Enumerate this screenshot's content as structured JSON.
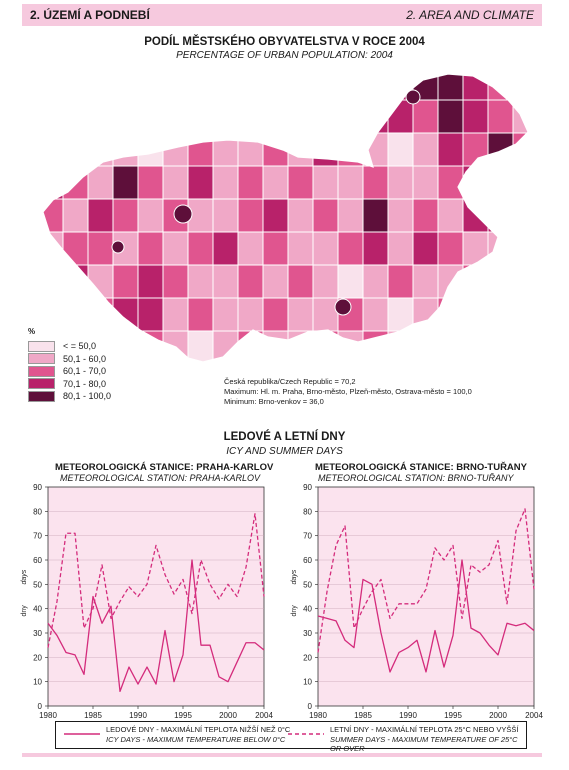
{
  "header": {
    "left": "2. ÚZEMÍ A PODNEBÍ",
    "right": "2. AREA AND CLIMATE"
  },
  "map": {
    "title": "PODÍL MĚSTSKÉHO OBYVATELSTVA V ROCE 2004",
    "subtitle": "PERCENTAGE OF URBAN POPULATION: 2004",
    "legend_unit": "%",
    "legend": [
      {
        "label": "< = 50,0",
        "color": "#f9e2ec"
      },
      {
        "label": "50,1 - 60,0",
        "color": "#f0a8c7"
      },
      {
        "label": "60,1 - 70,0",
        "color": "#e0558f"
      },
      {
        "label": "70,1 - 80,0",
        "color": "#b8226a"
      },
      {
        "label": "80,1 - 100,0",
        "color": "#5e0f3a"
      }
    ],
    "notes": [
      "Česká republika/Czech Republic = 70,2",
      "Maximum: Hl. m. Praha, Brno-město, Plzeň-město, Ostrava-město = 100,0",
      "Minimum: Brno-venkov = 36,0"
    ]
  },
  "charts_title": "LEDOVÉ A LETNÍ DNY",
  "charts_subtitle": "ICY AND SUMMER DAYS",
  "chart_data": [
    {
      "type": "line",
      "title": "METEOROLOGICKÁ STANICE: PRAHA-KARLOV",
      "subtitle": "METEOROLOGICAL STATION: PRAHA-KARLOV",
      "ylabel": "dny",
      "ylabel2": "days",
      "ylim": [
        0,
        90
      ],
      "yticks": [
        0,
        10,
        20,
        30,
        40,
        50,
        60,
        70,
        80,
        90
      ],
      "xlim": [
        1980,
        2004
      ],
      "xticks": [
        1980,
        1985,
        1990,
        1995,
        2000,
        2004
      ],
      "x": [
        1980,
        1981,
        1982,
        1983,
        1984,
        1985,
        1986,
        1987,
        1988,
        1989,
        1990,
        1991,
        1992,
        1993,
        1994,
        1995,
        1996,
        1997,
        1998,
        1999,
        2000,
        2001,
        2002,
        2003,
        2004
      ],
      "series": [
        {
          "name": "LEDOVÉ DNY - MAXIMÁLNÍ TEPLOTA NIŽŠÍ NEŽ 0°C",
          "style": "solid",
          "values": [
            34,
            29,
            22,
            21,
            13,
            45,
            34,
            41,
            6,
            16,
            9,
            16,
            9,
            31,
            10,
            21,
            60,
            25,
            25,
            12,
            10,
            18,
            26,
            26,
            23
          ]
        },
        {
          "name": "LETNÍ DNY - MAXIMÁLNÍ TEPLOTA 25°C NEBO VYŠŠÍ",
          "style": "dashed",
          "values": [
            24,
            43,
            71,
            71,
            32,
            40,
            58,
            36,
            43,
            49,
            45,
            50,
            66,
            54,
            46,
            52,
            38,
            60,
            50,
            44,
            50,
            45,
            57,
            79,
            45
          ]
        }
      ]
    },
    {
      "type": "line",
      "title": "METEOROLOGICKÁ STANICE: BRNO-TUŘANY",
      "subtitle": "METEOROLOGICAL STATION: BRNO-TUŘANY",
      "ylabel": "dny",
      "ylabel2": "days",
      "ylim": [
        0,
        90
      ],
      "yticks": [
        0,
        10,
        20,
        30,
        40,
        50,
        60,
        70,
        80,
        90
      ],
      "xlim": [
        1980,
        2004
      ],
      "xticks": [
        1980,
        1985,
        1990,
        1995,
        2000,
        2004
      ],
      "x": [
        1980,
        1981,
        1982,
        1983,
        1984,
        1985,
        1986,
        1987,
        1988,
        1989,
        1990,
        1991,
        1992,
        1993,
        1994,
        1995,
        1996,
        1997,
        1998,
        1999,
        2000,
        2001,
        2002,
        2003,
        2004
      ],
      "series": [
        {
          "name": "LEDOVÉ DNY - MAXIMÁLNÍ TEPLOTA NIŽŠÍ NEŽ 0°C",
          "style": "solid",
          "values": [
            37,
            36,
            35,
            27,
            24,
            52,
            50,
            30,
            14,
            22,
            24,
            27,
            14,
            31,
            16,
            29,
            60,
            32,
            30,
            25,
            21,
            34,
            33,
            34,
            31
          ]
        },
        {
          "name": "LETNÍ DNY - MAXIMÁLNÍ TEPLOTA 25°C NEBO VYŠŠÍ",
          "style": "dashed",
          "values": [
            22,
            47,
            66,
            74,
            32,
            40,
            47,
            52,
            36,
            42,
            42,
            42,
            48,
            65,
            60,
            66,
            36,
            58,
            55,
            58,
            68,
            42,
            72,
            81,
            48
          ]
        }
      ]
    }
  ],
  "footer": {
    "icy_cz": "LEDOVÉ DNY - MAXIMÁLNÍ TEPLOTA NIŽŠÍ NEŽ 0°C",
    "icy_en": "ICY DAYS - MAXIMUM TEMPERATURE BELOW 0°C",
    "summer_cz": "LETNÍ DNY - MAXIMÁLNÍ TEPLOTA 25°C NEBO VYŠŠÍ",
    "summer_en": "SUMMER DAYS - MAXIMUM TEMPERATURE OF 25°C OR OVER"
  },
  "colors": {
    "line": "#d42c7c",
    "plot_bg": "#fbe3ee",
    "header": "#f6c9de"
  }
}
